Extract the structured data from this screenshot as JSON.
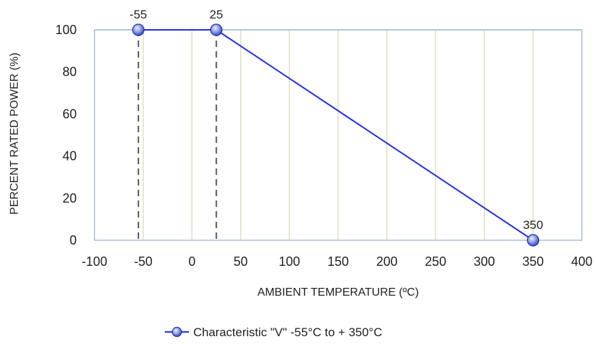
{
  "chart_data": {
    "type": "line",
    "title": "",
    "xlabel": "AMBIENT TEMPERATURE (ºC)",
    "ylabel": "PERCENT RATED POWER (%)",
    "xlim": [
      -100,
      400
    ],
    "ylim": [
      0,
      100
    ],
    "x_ticks": [
      -100,
      -50,
      0,
      50,
      100,
      150,
      200,
      250,
      300,
      350,
      400
    ],
    "y_ticks": [
      0,
      20,
      40,
      60,
      80,
      100
    ],
    "grid": {
      "vertical": true,
      "horizontal": false
    },
    "legend_position": "bottom-center",
    "series": [
      {
        "name": "Characteristic \"V\" -55°C to + 350°C",
        "color": "#1f2fe0",
        "marker_color": "#7d8fd6",
        "x": [
          -55,
          25,
          350
        ],
        "y": [
          100,
          100,
          0
        ]
      }
    ],
    "point_labels": [
      "-55",
      "25",
      "350"
    ],
    "reference_lines": [
      {
        "x": -55,
        "style": "dashed"
      },
      {
        "x": 25,
        "style": "dashed"
      }
    ]
  }
}
